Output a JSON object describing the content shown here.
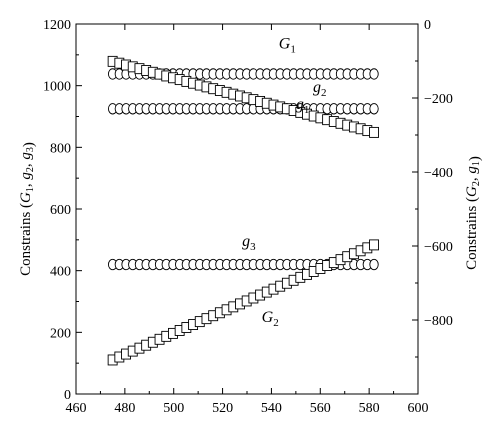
{
  "chart_data": {
    "type": "scatter",
    "xlim": [
      460,
      600
    ],
    "ylim_left": [
      0,
      1200
    ],
    "ylim_right": [
      -1000,
      0
    ],
    "x_ticks": [
      460,
      480,
      500,
      520,
      540,
      560,
      580,
      600
    ],
    "y_left_ticks": [
      0,
      200,
      400,
      600,
      800,
      1000,
      1200
    ],
    "y_right_ticks": [
      -800,
      -600,
      -400,
      -200,
      0
    ],
    "x_ticks_labels": [
      "460",
      "480",
      "500",
      "520",
      "540",
      "560",
      "580",
      "600"
    ],
    "y_left_ticks_labels": [
      "0",
      "200",
      "400",
      "600",
      "800",
      "1000",
      "1200"
    ],
    "y_right_ticks_labels": [
      "−800",
      "−600",
      "−400",
      "−200",
      "0"
    ],
    "ylabel_left": {
      "prefix": "Constrains (",
      "parts": [
        [
          "G",
          "1"
        ],
        [
          "g",
          "2"
        ],
        [
          "g",
          "3"
        ]
      ],
      "suffix": ")"
    },
    "ylabel_right": {
      "prefix": "Constrains (",
      "parts": [
        [
          "G",
          "2"
        ],
        [
          "g",
          "1"
        ]
      ],
      "suffix": ")"
    },
    "grid": false,
    "series": [
      {
        "name": "G1",
        "axis": "left",
        "marker": "circle",
        "x_start": 475,
        "x_end": 582,
        "y_start": 1038,
        "y_end": 1038,
        "count": 40
      },
      {
        "name": "g2",
        "axis": "left",
        "marker": "circle",
        "x_start": 475,
        "x_end": 582,
        "y_start": 925,
        "y_end": 925,
        "count": 40
      },
      {
        "name": "g3",
        "axis": "left",
        "marker": "circle",
        "x_start": 475,
        "x_end": 582,
        "y_start": 420,
        "y_end": 420,
        "count": 40
      },
      {
        "name": "g1",
        "axis": "right",
        "marker": "square",
        "x_start": 475,
        "x_end": 582,
        "y_start": -101,
        "y_end": -293,
        "count": 40
      },
      {
        "name": "G2",
        "axis": "right",
        "marker": "square",
        "x_start": 475,
        "x_end": 582,
        "y_start": -908,
        "y_end": -597,
        "count": 40
      }
    ],
    "annotations": [
      {
        "name": "G1-label",
        "base": "G",
        "sub": "1",
        "x": 543,
        "y": 1120,
        "axis": "left"
      },
      {
        "name": "g2-label",
        "base": "g",
        "sub": "2",
        "x": 557,
        "y": 980,
        "axis": "left"
      },
      {
        "name": "g1-label",
        "base": "g",
        "sub": "1",
        "x": 550,
        "y": -230,
        "axis": "right"
      },
      {
        "name": "g3-label",
        "base": "g",
        "sub": "3",
        "x": 528,
        "y": 480,
        "axis": "left"
      },
      {
        "name": "G2-label",
        "base": "G",
        "sub": "2",
        "x": 536,
        "y": -805,
        "axis": "right"
      }
    ]
  }
}
